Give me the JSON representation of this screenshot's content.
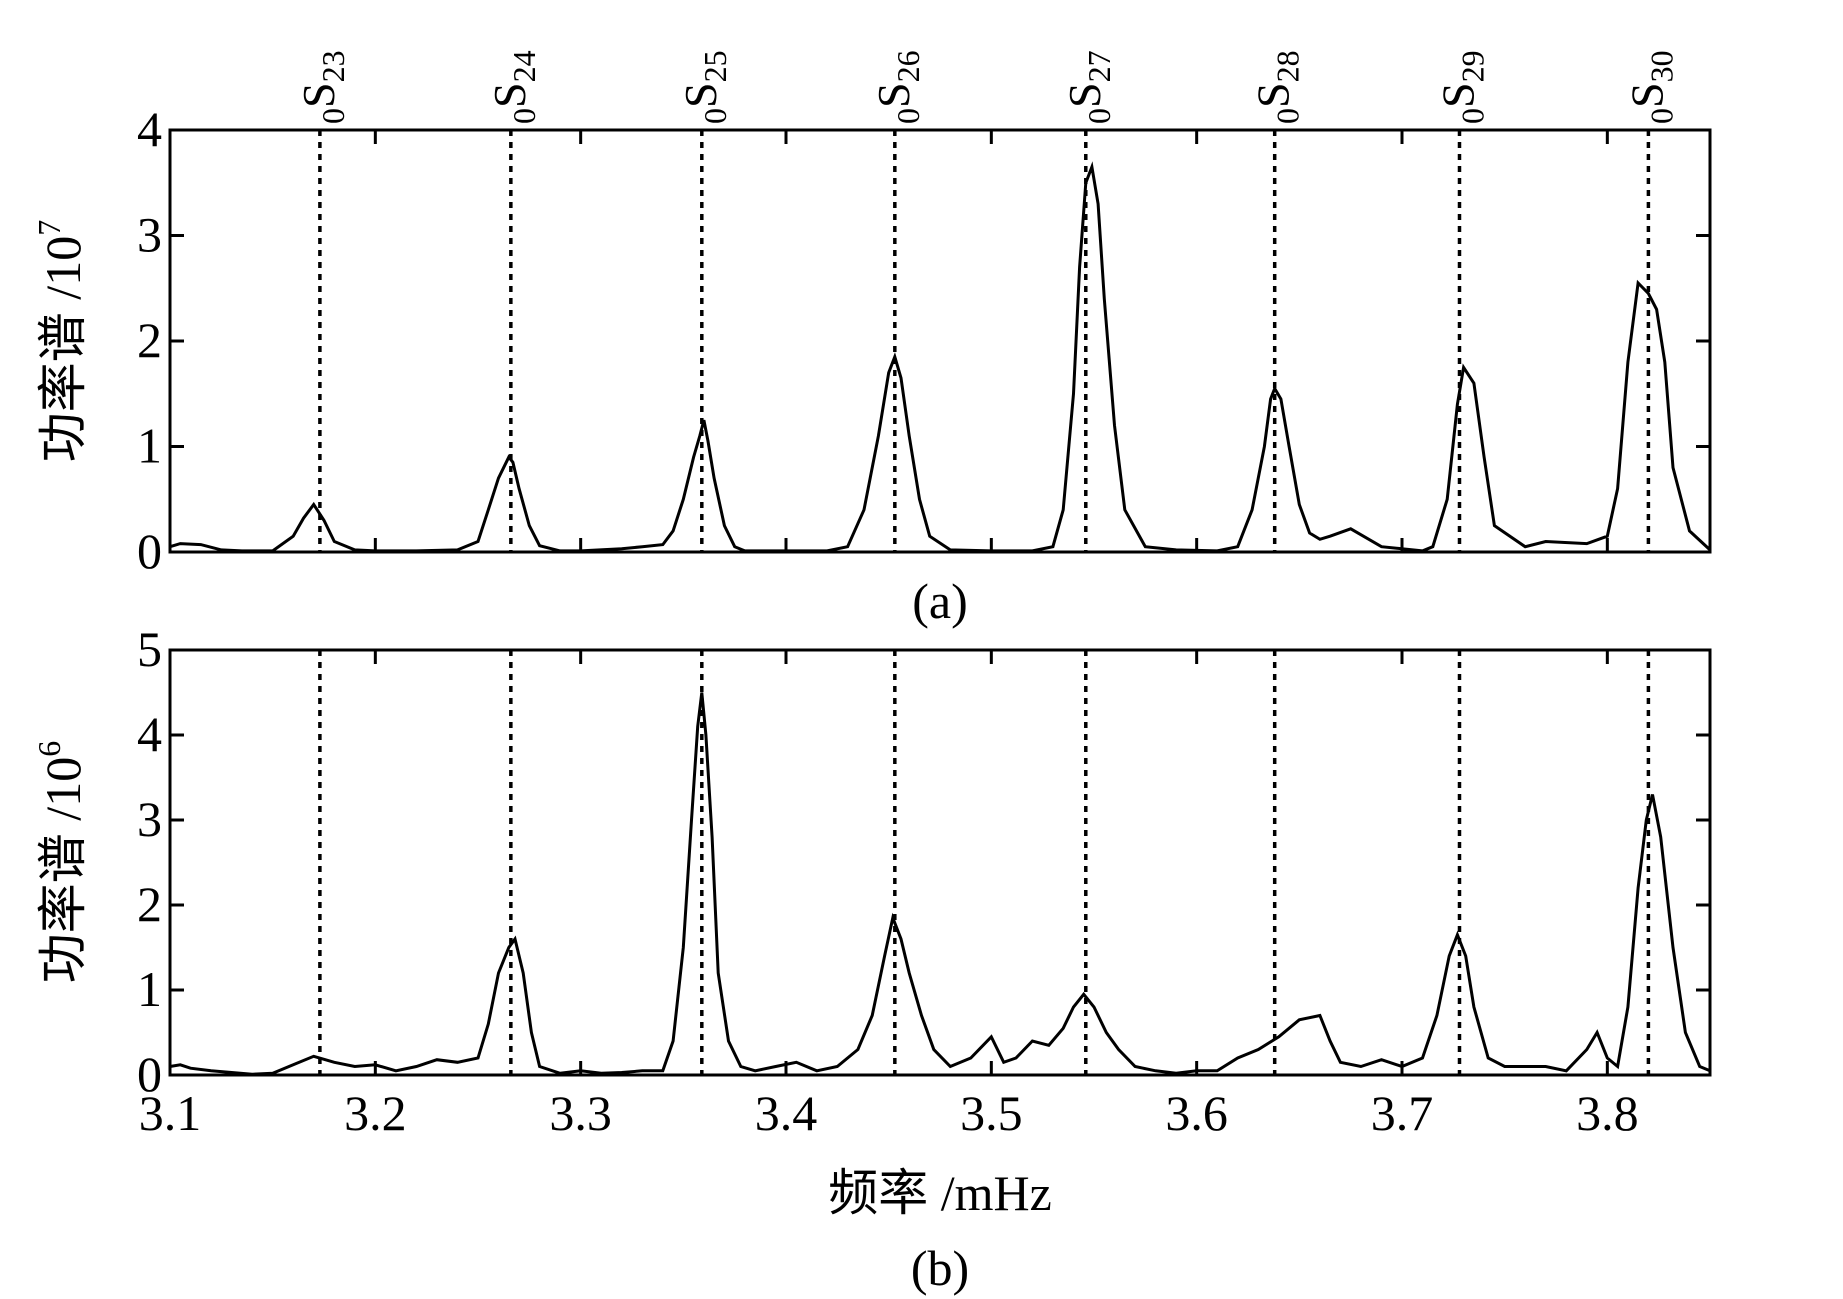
{
  "chart_data": [
    {
      "type": "line",
      "panel_label": "(a)",
      "ylabel": "功率谱 /10",
      "ylabel_exponent": "7",
      "xlim": [
        3.1,
        3.85
      ],
      "ylim": [
        0,
        4
      ],
      "yticks": [
        "0",
        "1",
        "2",
        "3",
        "4"
      ],
      "xticks_shown": false,
      "mode_labels": [
        {
          "prefix": "0",
          "letter": "S",
          "sub": "23",
          "x": 3.173
        },
        {
          "prefix": "0",
          "letter": "S",
          "sub": "24",
          "x": 3.266
        },
        {
          "prefix": "0",
          "letter": "S",
          "sub": "25",
          "x": 3.359
        },
        {
          "prefix": "0",
          "letter": "S",
          "sub": "26",
          "x": 3.453
        },
        {
          "prefix": "0",
          "letter": "S",
          "sub": "27",
          "x": 3.546
        },
        {
          "prefix": "0",
          "letter": "S",
          "sub": "28",
          "x": 3.638
        },
        {
          "prefix": "0",
          "letter": "S",
          "sub": "29",
          "x": 3.728
        },
        {
          "prefix": "0",
          "letter": "S",
          "sub": "30",
          "x": 3.82
        }
      ],
      "series": [
        {
          "x": [
            3.1,
            3.105,
            3.115,
            3.125,
            3.135,
            3.15,
            3.16,
            3.165,
            3.17,
            3.175,
            3.18,
            3.19,
            3.2,
            3.22,
            3.24,
            3.25,
            3.255,
            3.26,
            3.265,
            3.267,
            3.27,
            3.275,
            3.28,
            3.29,
            3.3,
            3.32,
            3.33,
            3.34,
            3.345,
            3.35,
            3.355,
            3.358,
            3.36,
            3.362,
            3.365,
            3.37,
            3.375,
            3.38,
            3.4,
            3.42,
            3.43,
            3.438,
            3.445,
            3.45,
            3.453,
            3.456,
            3.46,
            3.465,
            3.47,
            3.48,
            3.5,
            3.52,
            3.53,
            3.535,
            3.54,
            3.543,
            3.546,
            3.549,
            3.552,
            3.555,
            3.56,
            3.565,
            3.575,
            3.59,
            3.61,
            3.62,
            3.627,
            3.633,
            3.636,
            3.638,
            3.641,
            3.645,
            3.65,
            3.655,
            3.66,
            3.665,
            3.675,
            3.69,
            3.71,
            3.715,
            3.722,
            3.727,
            3.73,
            3.735,
            3.74,
            3.745,
            3.76,
            3.77,
            3.79,
            3.8,
            3.805,
            3.81,
            3.815,
            3.82,
            3.824,
            3.828,
            3.832,
            3.84,
            3.85
          ],
          "y": [
            0.05,
            0.08,
            0.07,
            0.02,
            0.01,
            0.01,
            0.15,
            0.32,
            0.45,
            0.3,
            0.1,
            0.02,
            0.01,
            0.01,
            0.02,
            0.1,
            0.4,
            0.7,
            0.9,
            0.85,
            0.6,
            0.25,
            0.06,
            0.01,
            0.01,
            0.03,
            0.05,
            0.07,
            0.2,
            0.5,
            0.9,
            1.1,
            1.25,
            1.05,
            0.7,
            0.25,
            0.05,
            0.01,
            0.01,
            0.01,
            0.05,
            0.4,
            1.1,
            1.7,
            1.85,
            1.65,
            1.1,
            0.5,
            0.15,
            0.02,
            0.01,
            0.01,
            0.05,
            0.4,
            1.5,
            2.7,
            3.5,
            3.65,
            3.3,
            2.4,
            1.2,
            0.4,
            0.05,
            0.02,
            0.01,
            0.05,
            0.4,
            1.0,
            1.45,
            1.55,
            1.45,
            1.0,
            0.45,
            0.18,
            0.12,
            0.15,
            0.22,
            0.05,
            0.01,
            0.05,
            0.5,
            1.4,
            1.75,
            1.6,
            0.9,
            0.25,
            0.05,
            0.1,
            0.08,
            0.15,
            0.6,
            1.8,
            2.55,
            2.45,
            2.3,
            1.8,
            0.8,
            0.2,
            0.02
          ]
        }
      ]
    },
    {
      "type": "line",
      "panel_label": "(b)",
      "ylabel": "功率谱 /10",
      "ylabel_exponent": "6",
      "xlabel": "频率 /mHz",
      "xlim": [
        3.1,
        3.85
      ],
      "ylim": [
        0,
        5
      ],
      "xticks": [
        "3.1",
        "3.2",
        "3.3",
        "3.4",
        "3.5",
        "3.6",
        "3.7",
        "3.8"
      ],
      "yticks": [
        "0",
        "1",
        "2",
        "3",
        "4",
        "5"
      ],
      "mode_lines_x": [
        3.173,
        3.266,
        3.359,
        3.453,
        3.546,
        3.638,
        3.728,
        3.82
      ],
      "series": [
        {
          "x": [
            3.1,
            3.105,
            3.11,
            3.12,
            3.13,
            3.14,
            3.15,
            3.16,
            3.17,
            3.18,
            3.19,
            3.2,
            3.21,
            3.22,
            3.23,
            3.24,
            3.25,
            3.255,
            3.26,
            3.265,
            3.268,
            3.272,
            3.276,
            3.28,
            3.29,
            3.3,
            3.31,
            3.32,
            3.33,
            3.34,
            3.345,
            3.35,
            3.354,
            3.357,
            3.359,
            3.361,
            3.364,
            3.367,
            3.372,
            3.378,
            3.385,
            3.395,
            3.405,
            3.415,
            3.425,
            3.435,
            3.442,
            3.448,
            3.452,
            3.456,
            3.46,
            3.466,
            3.472,
            3.48,
            3.49,
            3.5,
            3.506,
            3.512,
            3.52,
            3.528,
            3.535,
            3.54,
            3.545,
            3.55,
            3.556,
            3.562,
            3.57,
            3.58,
            3.59,
            3.6,
            3.61,
            3.62,
            3.63,
            3.64,
            3.65,
            3.66,
            3.665,
            3.67,
            3.68,
            3.69,
            3.7,
            3.71,
            3.717,
            3.723,
            3.727,
            3.731,
            3.735,
            3.742,
            3.75,
            3.76,
            3.77,
            3.78,
            3.79,
            3.795,
            3.8,
            3.805,
            3.81,
            3.815,
            3.819,
            3.822,
            3.826,
            3.832,
            3.838,
            3.845,
            3.85
          ],
          "y": [
            0.1,
            0.12,
            0.08,
            0.05,
            0.03,
            0.01,
            0.02,
            0.12,
            0.22,
            0.15,
            0.1,
            0.12,
            0.05,
            0.1,
            0.18,
            0.15,
            0.2,
            0.6,
            1.2,
            1.5,
            1.6,
            1.2,
            0.5,
            0.1,
            0.02,
            0.05,
            0.02,
            0.03,
            0.05,
            0.05,
            0.4,
            1.5,
            3.0,
            4.1,
            4.5,
            4.0,
            2.8,
            1.2,
            0.4,
            0.1,
            0.05,
            0.1,
            0.15,
            0.05,
            0.1,
            0.3,
            0.7,
            1.4,
            1.85,
            1.6,
            1.2,
            0.7,
            0.3,
            0.1,
            0.2,
            0.45,
            0.15,
            0.2,
            0.4,
            0.35,
            0.55,
            0.8,
            0.95,
            0.8,
            0.5,
            0.3,
            0.1,
            0.05,
            0.02,
            0.05,
            0.05,
            0.2,
            0.3,
            0.45,
            0.65,
            0.7,
            0.4,
            0.15,
            0.1,
            0.18,
            0.1,
            0.2,
            0.7,
            1.4,
            1.65,
            1.4,
            0.8,
            0.2,
            0.1,
            0.1,
            0.1,
            0.05,
            0.3,
            0.5,
            0.2,
            0.1,
            0.8,
            2.2,
            3.0,
            3.3,
            2.8,
            1.5,
            0.5,
            0.1,
            0.05
          ]
        }
      ]
    }
  ]
}
